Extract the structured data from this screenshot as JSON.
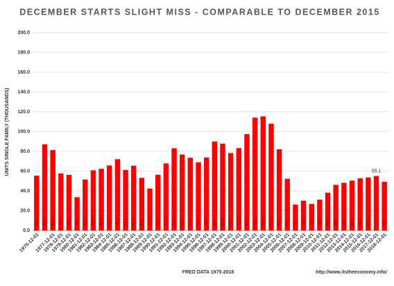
{
  "chart_data": {
    "type": "bar",
    "title": "DECEMBER  STARTS  SLIGHT MISS - COMPARABLE TO DECEMBER 2015",
    "y_label": "UNITS SINGLE FAMILY (THOUSANDS)",
    "x_label": "FRED  DATA 1975-2018",
    "source": "http://www.itstheeconomy.info/",
    "annotation": "55.1",
    "color": "#ff0000",
    "categories": [
      "1975-12-01",
      null,
      "1977-12-01",
      "1978-12-01",
      "1979-12-01",
      "1980-12-01",
      "1981-12-01",
      "1982-12-01",
      "1983-12-01",
      "1984-12-01",
      "1985-12-01",
      "1986-12-01",
      "1987-12-01",
      "1988-12-01",
      "1989-12-01",
      "1990-12-01",
      "1991-12-01",
      "1992-12-01",
      "1993-12-01",
      "1994-12-01",
      "1995-12-01",
      "1996-12-01",
      "1997-12-01",
      "1998-12-01",
      "1999-12-01",
      "2000-12-01",
      "2001-12-01",
      "2002-12-01",
      "2003-12-01",
      "2004-12-01",
      "2005-12-01",
      "2006-12-01",
      "2007-12-01",
      "2008-12-01",
      "2009-12-01",
      "2010-12-01",
      "2011-12-01",
      "2012-12-01",
      "2013-12-01",
      "2014-12-01",
      "2015-12-01",
      "2016-12-01",
      "2017-12-01",
      "2018-12-01"
    ],
    "values": [
      55.4,
      87.1,
      81.3,
      57.7,
      56.2,
      33.6,
      51.5,
      60.8,
      62.4,
      65.7,
      72.1,
      61.2,
      65.5,
      53.2,
      42.4,
      56.3,
      67.8,
      83.1,
      76.8,
      73.6,
      68.9,
      73.8,
      89.9,
      87.8,
      78.3,
      83.3,
      97.4,
      114.1,
      115.4,
      107.9,
      82.1,
      52.2,
      26.2,
      30.1,
      26.8,
      31.2,
      38.2,
      46.1,
      48.2,
      50.4,
      52.8,
      53.6,
      55.1,
      49.2
    ],
    "ylim": [
      0,
      200
    ],
    "yticks": [
      {
        "value": 0,
        "label": "0.0"
      },
      {
        "value": 20,
        "label": "20.0"
      },
      {
        "value": 40,
        "label": "40.0"
      },
      {
        "value": 60,
        "label": "60.0"
      },
      {
        "value": 80,
        "label": "80.0"
      },
      {
        "value": 100,
        "label": "100.0"
      },
      {
        "value": 120,
        "label": "120.0"
      },
      {
        "value": 140,
        "label": "140.0"
      },
      {
        "value": 160,
        "label": "160.0"
      },
      {
        "value": 180,
        "label": "180.0"
      },
      {
        "value": 200,
        "label": "200.0"
      }
    ],
    "grid": true
  }
}
